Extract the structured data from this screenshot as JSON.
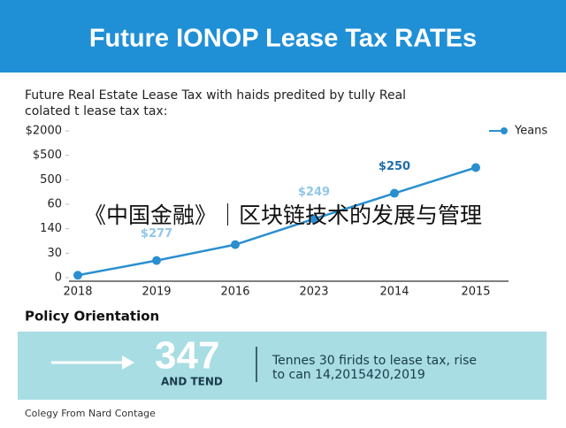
{
  "header": {
    "title": "Future IONOP Lease Tax RATEs"
  },
  "subtitle": [
    "Future Real Estate Lease Tax with haids predited by tully Real",
    "colated t lease tax tax:"
  ],
  "chart_data": {
    "type": "line",
    "categories": [
      "2018",
      "2019",
      "2016",
      "2023",
      "2014",
      "2015"
    ],
    "series": [
      {
        "name": "Yeans",
        "color": "#2a8fd0",
        "values": [
          0.1,
          0.7,
          1.35,
          2.4,
          3.45,
          4.5
        ]
      }
    ],
    "ylim": [
      0,
      6
    ],
    "yticks": [
      0,
      1,
      2,
      3,
      4,
      5,
      6
    ],
    "ytick_labels": [
      "0",
      "30",
      "140",
      "60",
      "500",
      "$500",
      "$2000"
    ],
    "annotations": [
      {
        "text": "$277",
        "category": 1
      },
      {
        "text": "$249",
        "category": 3
      },
      {
        "text": "$250",
        "category": 4
      }
    ]
  },
  "watermark": "《中国金融》｜区块链技术的发展与管理",
  "policy": {
    "heading": "Policy Orientation",
    "number": "347",
    "number_caption": "AND TEND",
    "text": [
      "Tennes 30 firids to lease tax, rise",
      "to can 14,2015420,2019"
    ]
  },
  "footer": "Colegy From Nard Contage"
}
